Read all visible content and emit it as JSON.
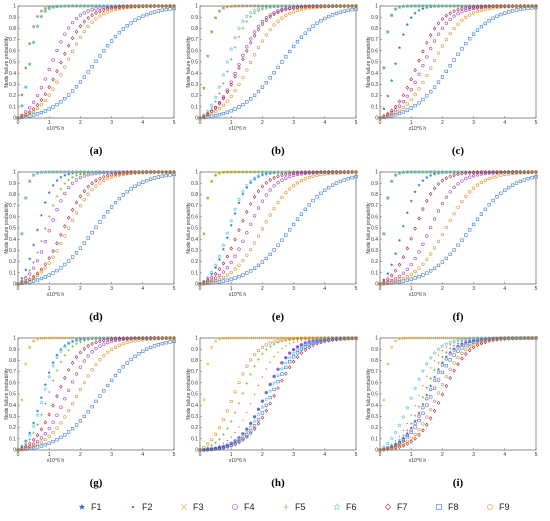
{
  "figure": {
    "panel_labels": [
      "(a)",
      "(b)",
      "(c)",
      "(d)",
      "(e)",
      "(f)",
      "(g)",
      "(h)",
      "(i)"
    ],
    "legend": [
      {
        "label": "F1",
        "marker": "star-filled",
        "color": "#1f77d4"
      },
      {
        "label": "F2",
        "marker": "dot",
        "color": "#d9541a"
      },
      {
        "label": "F3",
        "marker": "cross",
        "color": "#e0a020"
      },
      {
        "label": "F4",
        "marker": "circle",
        "color": "#9b3fc0"
      },
      {
        "label": "F5",
        "marker": "plus",
        "color": "#6ab72d"
      },
      {
        "label": "F6",
        "marker": "star",
        "color": "#4db8e8"
      },
      {
        "label": "F7",
        "marker": "diamond",
        "color": "#a2142f"
      },
      {
        "label": "F8",
        "marker": "square",
        "color": "#2f6fd0"
      },
      {
        "label": "F9",
        "marker": "circle",
        "color": "#d98c2a"
      }
    ]
  },
  "chart_data": [
    {
      "type": "scatter",
      "panel": "(a)",
      "xlabel": "x10^6 h",
      "ylabel": "Node failure probability",
      "xlim": [
        0,
        5
      ],
      "ylim": [
        0,
        1
      ],
      "xticks": [
        "0",
        "1",
        "2",
        "3",
        "4",
        "5"
      ],
      "yticks": [
        "0",
        "0.1",
        "0.2",
        "0.3",
        "0.4",
        "0.5",
        "0.6",
        "0.7",
        "0.8",
        "0.9",
        "1"
      ],
      "series": [
        {
          "name": "F1",
          "midpoint": 0.2,
          "steepness": 6.0
        },
        {
          "name": "F2",
          "midpoint": 0.2,
          "steepness": 6.0
        },
        {
          "name": "F3",
          "midpoint": 0.2,
          "steepness": 6.0
        },
        {
          "name": "F4",
          "midpoint": 1.05,
          "steepness": 2.6
        },
        {
          "name": "F5",
          "midpoint": 0.35,
          "steepness": 6.0
        },
        {
          "name": "F6",
          "midpoint": 0.35,
          "steepness": 6.0
        },
        {
          "name": "F7",
          "midpoint": 1.35,
          "steepness": 2.4
        },
        {
          "name": "F8",
          "midpoint": 2.45,
          "steepness": 1.5
        },
        {
          "name": "F9",
          "midpoint": 1.55,
          "steepness": 2.2
        }
      ]
    },
    {
      "type": "scatter",
      "panel": "(b)",
      "xlabel": "x10^6 h",
      "ylabel": "Node failure probability",
      "xlim": [
        0,
        5
      ],
      "ylim": [
        0,
        1
      ],
      "xticks": [
        "0",
        "1",
        "2",
        "3",
        "4",
        "5"
      ],
      "yticks": [
        "0",
        "0.1",
        "0.2",
        "0.3",
        "0.4",
        "0.5",
        "0.6",
        "0.7",
        "0.8",
        "0.9",
        "1"
      ],
      "series": [
        {
          "name": "F1",
          "midpoint": 0.15,
          "steepness": 7.0
        },
        {
          "name": "F2",
          "midpoint": 0.15,
          "steepness": 7.0
        },
        {
          "name": "F3",
          "midpoint": 0.15,
          "steepness": 7.0
        },
        {
          "name": "F4",
          "midpoint": 1.25,
          "steepness": 2.5
        },
        {
          "name": "F5",
          "midpoint": 0.95,
          "steepness": 3.4
        },
        {
          "name": "F6",
          "midpoint": 0.85,
          "steepness": 3.6
        },
        {
          "name": "F7",
          "midpoint": 1.3,
          "steepness": 2.4
        },
        {
          "name": "F8",
          "midpoint": 2.6,
          "steepness": 1.5
        },
        {
          "name": "F9",
          "midpoint": 1.6,
          "steepness": 2.1
        }
      ]
    },
    {
      "type": "scatter",
      "panel": "(c)",
      "xlabel": "x10^6 h",
      "ylabel": "Node failure probability",
      "xlim": [
        0,
        5
      ],
      "ylim": [
        0,
        1
      ],
      "xticks": [
        "0",
        "1",
        "2",
        "3",
        "4",
        "5"
      ],
      "yticks": [
        "0",
        "0.1",
        "0.2",
        "0.3",
        "0.4",
        "0.5",
        "0.6",
        "0.7",
        "0.8",
        "0.9",
        "1"
      ],
      "series": [
        {
          "name": "F1",
          "midpoint": 0.45,
          "steepness": 4.2
        },
        {
          "name": "F2",
          "midpoint": 0.05,
          "steepness": 9.0
        },
        {
          "name": "F3",
          "midpoint": 0.05,
          "steepness": 9.0
        },
        {
          "name": "F4",
          "midpoint": 1.4,
          "steepness": 2.4
        },
        {
          "name": "F5",
          "midpoint": 0.05,
          "steepness": 9.0
        },
        {
          "name": "F6",
          "midpoint": 0.05,
          "steepness": 9.0
        },
        {
          "name": "F7",
          "midpoint": 1.2,
          "steepness": 2.6
        },
        {
          "name": "F8",
          "midpoint": 2.3,
          "steepness": 1.6
        },
        {
          "name": "F9",
          "midpoint": 1.7,
          "steepness": 2.1
        }
      ]
    },
    {
      "type": "scatter",
      "panel": "(d)",
      "xlabel": "x10^6 h",
      "ylabel": "Node failure probability",
      "xlim": [
        0,
        5
      ],
      "ylim": [
        0,
        1
      ],
      "xticks": [
        "0",
        "1",
        "2",
        "3",
        "4",
        "5"
      ],
      "yticks": [
        "0",
        "0.1",
        "0.2",
        "0.3",
        "0.4",
        "0.5",
        "0.6",
        "0.7",
        "0.8",
        "0.9",
        "1"
      ],
      "series": [
        {
          "name": "F1",
          "midpoint": 0.6,
          "steepness": 4.0
        },
        {
          "name": "F2",
          "midpoint": 0.05,
          "steepness": 9.0
        },
        {
          "name": "F3",
          "midpoint": 0.05,
          "steepness": 9.0
        },
        {
          "name": "F4",
          "midpoint": 1.0,
          "steepness": 3.0
        },
        {
          "name": "F5",
          "midpoint": 0.85,
          "steepness": 3.4
        },
        {
          "name": "F6",
          "midpoint": 0.05,
          "steepness": 9.0
        },
        {
          "name": "F7",
          "midpoint": 1.45,
          "steepness": 2.4
        },
        {
          "name": "F8",
          "midpoint": 2.45,
          "steepness": 1.5
        },
        {
          "name": "F9",
          "midpoint": 1.6,
          "steepness": 2.2
        }
      ]
    },
    {
      "type": "scatter",
      "panel": "(e)",
      "xlabel": "x10^6 h",
      "ylabel": "Node failure probability",
      "xlim": [
        0,
        5
      ],
      "ylim": [
        0,
        1
      ],
      "xticks": [
        "0",
        "1",
        "2",
        "3",
        "4",
        "5"
      ],
      "yticks": [
        "0",
        "0.1",
        "0.2",
        "0.3",
        "0.4",
        "0.5",
        "0.6",
        "0.7",
        "0.8",
        "0.9",
        "1"
      ],
      "series": [
        {
          "name": "F1",
          "midpoint": 0.95,
          "steepness": 3.4
        },
        {
          "name": "F2",
          "midpoint": 0.05,
          "steepness": 9.0
        },
        {
          "name": "F3",
          "midpoint": 0.05,
          "steepness": 9.0
        },
        {
          "name": "F4",
          "midpoint": 1.55,
          "steepness": 2.4
        },
        {
          "name": "F5",
          "midpoint": 0.05,
          "steepness": 9.0
        },
        {
          "name": "F6",
          "midpoint": 0.9,
          "steepness": 3.4
        },
        {
          "name": "F7",
          "midpoint": 1.25,
          "steepness": 2.6
        },
        {
          "name": "F8",
          "midpoint": 2.9,
          "steepness": 1.5
        },
        {
          "name": "F9",
          "midpoint": 2.0,
          "steepness": 2.0
        }
      ]
    },
    {
      "type": "scatter",
      "panel": "(f)",
      "xlabel": "x10^6 h",
      "ylabel": "Node failure probability",
      "xlim": [
        0,
        5
      ],
      "ylim": [
        0,
        1
      ],
      "xticks": [
        "0",
        "1",
        "2",
        "3",
        "4",
        "5"
      ],
      "yticks": [
        "0",
        "0.1",
        "0.2",
        "0.3",
        "0.4",
        "0.5",
        "0.6",
        "0.7",
        "0.8",
        "0.9",
        "1"
      ],
      "series": [
        {
          "name": "F1",
          "midpoint": 0.7,
          "steepness": 3.8
        },
        {
          "name": "F2",
          "midpoint": 0.05,
          "steepness": 9.0
        },
        {
          "name": "F3",
          "midpoint": 0.05,
          "steepness": 9.0
        },
        {
          "name": "F4",
          "midpoint": 1.6,
          "steepness": 2.4
        },
        {
          "name": "F5",
          "midpoint": 0.05,
          "steepness": 9.0
        },
        {
          "name": "F6",
          "midpoint": 0.05,
          "steepness": 9.0
        },
        {
          "name": "F7",
          "midpoint": 1.1,
          "steepness": 2.8
        },
        {
          "name": "F8",
          "midpoint": 2.9,
          "steepness": 1.5
        },
        {
          "name": "F9",
          "midpoint": 2.1,
          "steepness": 2.0
        }
      ]
    },
    {
      "type": "scatter",
      "panel": "(g)",
      "xlabel": "x10^6 h",
      "ylabel": "Node failure probability",
      "xlim": [
        0,
        5
      ],
      "ylim": [
        0,
        1
      ],
      "xticks": [
        "0",
        "1",
        "2",
        "3",
        "4",
        "5"
      ],
      "yticks": [
        "0",
        "0.1",
        "0.2",
        "0.3",
        "0.4",
        "0.5",
        "0.6",
        "0.7",
        "0.8",
        "0.9",
        "1"
      ],
      "series": [
        {
          "name": "F1",
          "midpoint": 0.75,
          "steepness": 3.6
        },
        {
          "name": "F2",
          "midpoint": 0.05,
          "steepness": 9.0
        },
        {
          "name": "F3",
          "midpoint": 0.05,
          "steepness": 9.0
        },
        {
          "name": "F4",
          "midpoint": 1.55,
          "steepness": 2.4
        },
        {
          "name": "F5",
          "midpoint": 0.95,
          "steepness": 3.2
        },
        {
          "name": "F6",
          "midpoint": 0.8,
          "steepness": 3.6
        },
        {
          "name": "F7",
          "midpoint": 1.25,
          "steepness": 2.6
        },
        {
          "name": "F8",
          "midpoint": 2.65,
          "steepness": 1.5
        },
        {
          "name": "F9",
          "midpoint": 1.9,
          "steepness": 2.0
        }
      ]
    },
    {
      "type": "scatter",
      "panel": "(h)",
      "xlabel": "x10^6 h",
      "ylabel": "Node failure probability",
      "xlim": [
        0,
        5
      ],
      "ylim": [
        0,
        1
      ],
      "xticks": [
        "0",
        "1",
        "2",
        "3",
        "4",
        "5"
      ],
      "yticks": [
        "0",
        "0.1",
        "0.2",
        "0.3",
        "0.4",
        "0.5",
        "0.6",
        "0.7",
        "0.8",
        "0.9",
        "1"
      ],
      "series": [
        {
          "name": "F1",
          "midpoint": 2.1,
          "steepness": 2.4
        },
        {
          "name": "F2",
          "midpoint": 1.75,
          "steepness": 2.6
        },
        {
          "name": "F3",
          "midpoint": 0.05,
          "steepness": 9.0
        },
        {
          "name": "F4",
          "midpoint": 2.1,
          "steepness": 2.4
        },
        {
          "name": "F5",
          "midpoint": 1.35,
          "steepness": 2.8
        },
        {
          "name": "F6",
          "midpoint": 2.2,
          "steepness": 2.3
        },
        {
          "name": "F7",
          "midpoint": 2.4,
          "steepness": 2.2
        },
        {
          "name": "F8",
          "midpoint": 2.3,
          "steepness": 2.3
        },
        {
          "name": "F9",
          "midpoint": 1.05,
          "steepness": 2.6
        }
      ]
    },
    {
      "type": "scatter",
      "panel": "(i)",
      "xlabel": "x10^6 h",
      "ylabel": "Node failure probability",
      "xlim": [
        0,
        5
      ],
      "ylim": [
        0,
        1
      ],
      "xticks": [
        "0",
        "1",
        "2",
        "3",
        "4",
        "5"
      ],
      "yticks": [
        "0",
        "0.1",
        "0.2",
        "0.3",
        "0.4",
        "0.5",
        "0.6",
        "0.7",
        "0.8",
        "0.9",
        "1"
      ],
      "series": [
        {
          "name": "F1",
          "midpoint": 1.5,
          "steepness": 2.6
        },
        {
          "name": "F2",
          "midpoint": 1.25,
          "steepness": 2.8
        },
        {
          "name": "F3",
          "midpoint": 0.05,
          "steepness": 9.0
        },
        {
          "name": "F4",
          "midpoint": 1.55,
          "steepness": 2.6
        },
        {
          "name": "F5",
          "midpoint": 1.4,
          "steepness": 2.7
        },
        {
          "name": "F6",
          "midpoint": 1.0,
          "steepness": 2.6
        },
        {
          "name": "F7",
          "midpoint": 2.0,
          "steepness": 2.4
        },
        {
          "name": "F8",
          "midpoint": 1.65,
          "steepness": 2.4
        },
        {
          "name": "F9",
          "midpoint": 1.85,
          "steepness": 2.4
        }
      ]
    }
  ]
}
